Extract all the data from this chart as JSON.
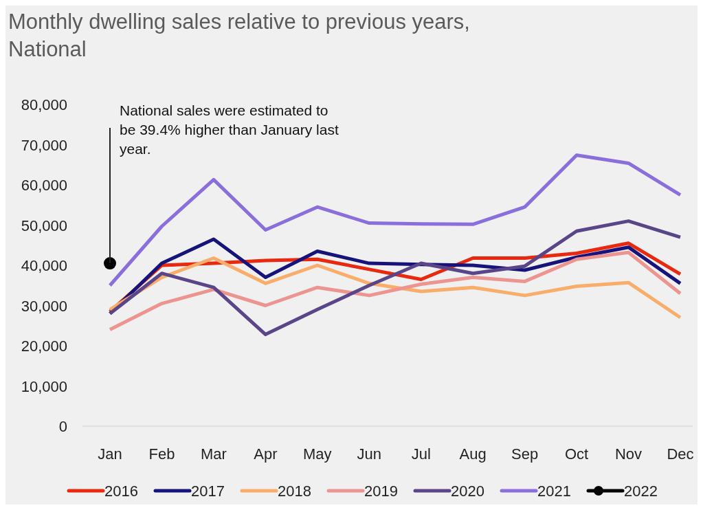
{
  "chart_data": {
    "type": "line",
    "title": "Monthly dwelling sales relative to previous years, National",
    "categories": [
      "Jan",
      "Feb",
      "Mar",
      "Apr",
      "May",
      "Jun",
      "Jul",
      "Aug",
      "Sep",
      "Oct",
      "Nov",
      "Dec"
    ],
    "series": [
      {
        "name": "2016",
        "color": "#e8280f",
        "values": [
          28500,
          40000,
          40500,
          41200,
          41500,
          39000,
          36500,
          41800,
          41800,
          43000,
          45500,
          37800
        ]
      },
      {
        "name": "2017",
        "color": "#16137a",
        "values": [
          28000,
          40500,
          46500,
          37000,
          43500,
          40500,
          40200,
          40000,
          38800,
          42000,
          44500,
          35500
        ]
      },
      {
        "name": "2018",
        "color": "#f9ad6a",
        "values": [
          29000,
          37000,
          41800,
          35500,
          40000,
          35500,
          33500,
          34500,
          32500,
          34800,
          35700,
          27000
        ]
      },
      {
        "name": "2019",
        "color": "#ec9490",
        "values": [
          24000,
          30500,
          34000,
          30000,
          34500,
          32500,
          35300,
          37000,
          36000,
          41500,
          43200,
          33000
        ]
      },
      {
        "name": "2020",
        "color": "#5a4588",
        "values": [
          28000,
          38000,
          34500,
          22800,
          29000,
          35000,
          40500,
          38000,
          39800,
          48500,
          51000,
          47000
        ]
      },
      {
        "name": "2021",
        "color": "#8a6fdc",
        "values": [
          35000,
          49700,
          61300,
          48800,
          54500,
          50500,
          50300,
          50200,
          54500,
          67400,
          65400,
          57500
        ]
      },
      {
        "name": "2022",
        "color": "#000000",
        "marker": "circle",
        "values": [
          40500,
          null,
          null,
          null,
          null,
          null,
          null,
          null,
          null,
          null,
          null,
          null
        ]
      }
    ],
    "ylim": [
      0,
      80000
    ],
    "yticks": [
      0,
      {
        "value": 10000,
        "label": "10,000"
      },
      {
        "value": 20000,
        "label": "20,000"
      },
      {
        "value": 30000,
        "label": "30,000"
      },
      {
        "value": 40000,
        "label": "40,000"
      },
      {
        "value": 50000,
        "label": "50,000"
      },
      {
        "value": 60000,
        "label": "60,000"
      },
      {
        "value": 70000,
        "label": "70,000"
      },
      {
        "value": 80000,
        "label": "80,000"
      }
    ],
    "annotations": [
      {
        "text": "National sales were estimated to be 39.4% higher than January last year.",
        "x": "Jan",
        "y": 40500
      }
    ],
    "legend": "bottom",
    "marker": "none"
  }
}
